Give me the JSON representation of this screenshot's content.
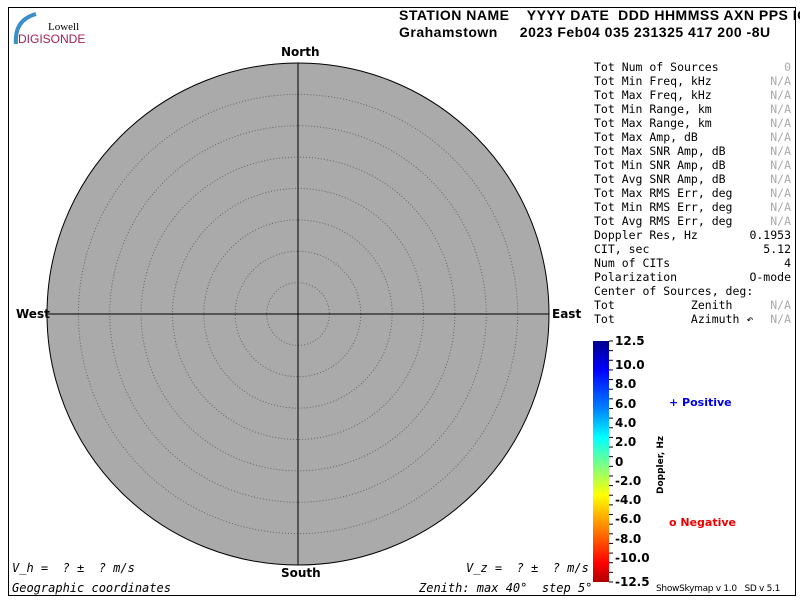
{
  "logo": {
    "line1": "Lowell",
    "line2": "DIGISONDE"
  },
  "header": {
    "labels": "STATION NAME    YYYY DATE  DDD HHMMSS AXN PPS IGP",
    "values": "Grahamstown     2023 Feb04 035 231325 417 200 -8U"
  },
  "directions": {
    "north": "North",
    "south": "South",
    "east": "East",
    "west": "West"
  },
  "stats": [
    {
      "label": "Tot Num of Sources",
      "value": "0",
      "dim": true
    },
    {
      "label": "Tot Min Freq, kHz",
      "value": "N/A",
      "dim": true
    },
    {
      "label": "Tot Max Freq, kHz",
      "value": "N/A",
      "dim": true
    },
    {
      "label": "Tot Min Range, km",
      "value": "N/A",
      "dim": true
    },
    {
      "label": "Tot Max Range, km",
      "value": "N/A",
      "dim": true
    },
    {
      "label": "Tot Max Amp, dB",
      "value": "N/A",
      "dim": true
    },
    {
      "label": "Tot Max SNR Amp, dB",
      "value": "N/A",
      "dim": true
    },
    {
      "label": "Tot Min SNR Amp, dB",
      "value": "N/A",
      "dim": true
    },
    {
      "label": "Tot Avg SNR Amp, dB",
      "value": "N/A",
      "dim": true
    },
    {
      "label": "Tot Max RMS Err, deg",
      "value": "N/A",
      "dim": true
    },
    {
      "label": "Tot Min RMS Err, deg",
      "value": "N/A",
      "dim": true
    },
    {
      "label": "Tot Avg RMS Err, deg",
      "value": "N/A",
      "dim": true
    },
    {
      "label": "Doppler Res, Hz",
      "value": "0.1953",
      "dim": false
    },
    {
      "label": "CIT, sec",
      "value": "5.12",
      "dim": false
    },
    {
      "label": "Num of CITs",
      "value": "4",
      "dim": false
    },
    {
      "label": "Polarization",
      "value": "O-mode",
      "dim": false
    },
    {
      "label": "Center of Sources, deg:",
      "value": "",
      "dim": false
    },
    {
      "label": "Tot           Zenith",
      "value": "N/A",
      "dim": true
    },
    {
      "label": "Tot           Azimuth ↶",
      "value": "N/A",
      "dim": true
    }
  ],
  "colorbar": {
    "title": "Doppler, Hz",
    "ticks": [
      "12.5",
      "10.0",
      "8.0",
      "6.0",
      "4.0",
      "2.0",
      "0",
      "-2.0",
      "-4.0",
      "-6.0",
      "-8.0",
      "-10.0",
      "-12.5"
    ],
    "tick_values": [
      12.5,
      10,
      8,
      6,
      4,
      2,
      0,
      -2,
      -4,
      -6,
      -8,
      -10,
      -12.5
    ],
    "range": [
      -12.5,
      12.5
    ]
  },
  "legend": {
    "positive": "+ Positive",
    "negative": "o Negative",
    "positive_color": "#0000ee",
    "negative_color": "#ee0000"
  },
  "velocity": {
    "vh": "V_h =  ? ±  ? m/s",
    "vz": "V_z =  ? ±  ? m/s"
  },
  "footer": {
    "coords": "Geographic coordinates",
    "zenith": "Zenith: max 40°  step 5°",
    "version": "ShowSkymap v 1.0   SD v 5.1"
  },
  "skymap": {
    "zenith_max": 40,
    "zenith_step": 5,
    "fill": "#aaaaaa"
  }
}
